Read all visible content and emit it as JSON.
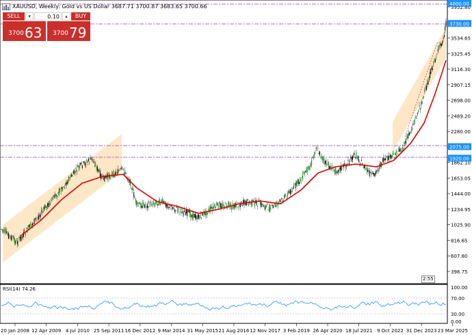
{
  "header": {
    "title": "XAUUSD, Weekly:  Gold vs US Dollar  3687.71 3700.87 3683.65 3700.66",
    "icon": "symbol-chart-icon"
  },
  "trade_panel": {
    "sell_label": "SELL",
    "buy_label": "BUY",
    "volume": "0.10",
    "dropdown_glyph": "▾",
    "up_glyph": "▴",
    "sell_base": "3700",
    "sell_big": "63",
    "buy_base": "3700",
    "buy_big": "79",
    "color": "#c9302c"
  },
  "price_axis": {
    "ticks": [
      "3952.80",
      "3743.10",
      "3534.65",
      "3325.45",
      "3116.30",
      "2907.15",
      "2698.00",
      "2489.20",
      "2280.00",
      "2071.00",
      "1862.10",
      "1653.05",
      "1444.00",
      "1234.95",
      "1025.90",
      "816.65",
      "607.80",
      "398.75"
    ]
  },
  "price_markers": [
    {
      "label": "4000.00",
      "color": "#1e90ff",
      "value": 4000
    },
    {
      "label": "3730.00",
      "color": "#1e90ff",
      "value": 3730
    },
    {
      "label": "2075.00",
      "color": "#1e90ff",
      "value": 2075
    },
    {
      "label": "1920.00",
      "color": "#1e90ff",
      "value": 1920
    }
  ],
  "time_axis": {
    "ticks": [
      "20 Jan 2008",
      "12 Apr 2009",
      "4 Jul 2010",
      "25 Sep 2011",
      "16 Dec 2012",
      "9 Mar 2014",
      "31 May 2015",
      "21 Aug 2016",
      "12 Nov 2017",
      "3 Feb 2019",
      "26 Apr 2020",
      "18 Jul 2021",
      "9 Oct 2022",
      "31 Dec 2023",
      "23 Mar 2025"
    ]
  },
  "indicator": {
    "label": "RSI(14) 74.26",
    "ticks": [
      "100.00",
      "70.00",
      "30.00",
      "0.00"
    ]
  },
  "grid_badge": "2:55",
  "colors": {
    "candles": "#00a000",
    "ma": "#e00000",
    "channel": "#fde3bd",
    "hline": "#9932cc",
    "rsi": "#1e90ff",
    "marker_bg": "#1e90ff"
  }
}
